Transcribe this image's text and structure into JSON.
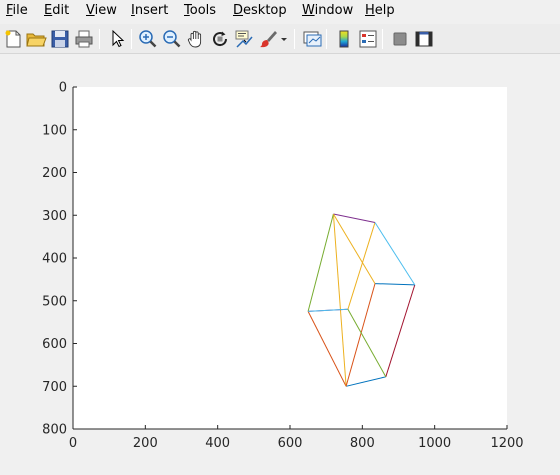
{
  "menubar": {
    "items": [
      {
        "first": "F",
        "rest": "ile"
      },
      {
        "first": "E",
        "rest": "dit"
      },
      {
        "first": "V",
        "rest": "iew"
      },
      {
        "first": "I",
        "rest": "nsert"
      },
      {
        "first": "T",
        "rest": "ools"
      },
      {
        "first": "D",
        "rest": "esktop"
      },
      {
        "first": "W",
        "rest": "indow"
      },
      {
        "first": "H",
        "rest": "elp"
      }
    ]
  },
  "toolbar": {
    "buttons": [
      "new-figure-icon",
      "open-file-icon",
      "save-icon",
      "print-icon",
      "select-arrow-icon",
      "zoom-in-icon",
      "zoom-out-icon",
      "pan-hand-icon",
      "rotate-3d-icon",
      "data-cursor-icon",
      "brush-icon",
      "brush-dropdown-icon",
      "link-plot-icon",
      "colorbar-icon",
      "legend-icon",
      "hide-plot-tools-icon",
      "show-plot-tools-icon"
    ]
  },
  "chart_data": {
    "type": "line",
    "title": "",
    "xlabel": "",
    "ylabel": "",
    "xlim": [
      0,
      1200
    ],
    "ylim": [
      0,
      800
    ],
    "y_reversed": true,
    "grid": false,
    "x_ticks": [
      "0",
      "200",
      "400",
      "600",
      "800",
      "1000",
      "1200"
    ],
    "y_ticks": [
      "0",
      "100",
      "200",
      "300",
      "400",
      "500",
      "600",
      "700",
      "800"
    ],
    "series": [
      {
        "color": "#0072bd",
        "x": [
          755,
          865
        ],
        "y": [
          700,
          678
        ]
      },
      {
        "color": "#d95319",
        "x": [
          755,
          650
        ],
        "y": [
          700,
          525
        ]
      },
      {
        "color": "#edb120",
        "x": [
          755,
          720
        ],
        "y": [
          700,
          297
        ]
      },
      {
        "color": "#7e2f8e",
        "x": [
          650,
          760
        ],
        "y": [
          525,
          520
        ]
      },
      {
        "color": "#77ac30",
        "x": [
          650,
          720
        ],
        "y": [
          525,
          297
        ]
      },
      {
        "color": "#4dbeee",
        "x": [
          650,
          760
        ],
        "y": [
          525,
          520
        ]
      },
      {
        "color": "#a2142f",
        "x": [
          865,
          945
        ],
        "y": [
          678,
          463
        ]
      },
      {
        "color": "#0072bd",
        "x": [
          835,
          945
        ],
        "y": [
          460,
          463
        ]
      },
      {
        "color": "#d95319",
        "x": [
          755,
          835
        ],
        "y": [
          700,
          460
        ]
      },
      {
        "color": "#edb120",
        "x": [
          760,
          835
        ],
        "y": [
          520,
          317
        ]
      },
      {
        "color": "#7e2f8e",
        "x": [
          720,
          835
        ],
        "y": [
          297,
          317
        ]
      },
      {
        "color": "#77ac30",
        "x": [
          760,
          865
        ],
        "y": [
          520,
          678
        ]
      },
      {
        "color": "#4dbeee",
        "x": [
          835,
          945
        ],
        "y": [
          317,
          463
        ]
      },
      {
        "color": "#edb120",
        "x": [
          720,
          835
        ],
        "y": [
          297,
          460
        ]
      }
    ]
  }
}
